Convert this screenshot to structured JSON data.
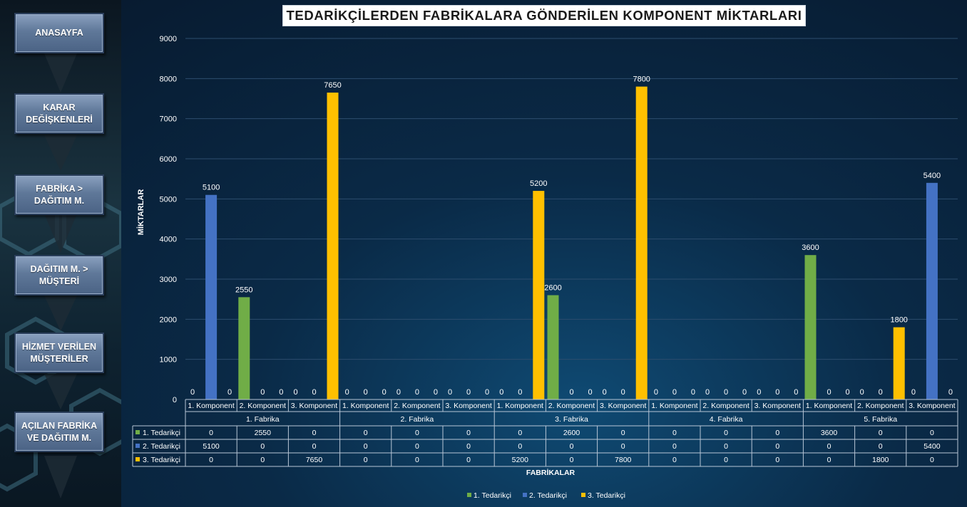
{
  "sidebar": {
    "items": [
      {
        "label": "ANASAYFA"
      },
      {
        "label": "KARAR DEĞİŞKENLERİ"
      },
      {
        "label": "FABRİKA > DAĞITIM M."
      },
      {
        "label": "DAĞITIM M. > MÜŞTERİ"
      },
      {
        "label": "HİZMET VERİLEN MÜŞTERİLER"
      },
      {
        "label": "AÇILAN FABRİKA VE DAĞITIM M."
      }
    ]
  },
  "colors": {
    "series": [
      "#70ad47",
      "#4472c4",
      "#ffc000"
    ]
  },
  "chart_data": {
    "type": "bar",
    "title": "TEDARİKÇİLERDEN FABRİKALARA GÖNDERİLEN KOMPONENT MİKTARLARI",
    "xlabel": "FABRİKALAR",
    "ylabel": "MİKTARLAR",
    "ylim": [
      0,
      9000
    ],
    "yticks": [
      0,
      1000,
      2000,
      3000,
      4000,
      5000,
      6000,
      7000,
      8000,
      9000
    ],
    "grid": true,
    "legend_position": "bottom",
    "groups": [
      "1. Fabrika",
      "2. Fabrika",
      "3. Fabrika",
      "4. Fabrika",
      "5. Fabrika"
    ],
    "subcategories": [
      "1. Komponent",
      "2. Komponent",
      "3. Komponent"
    ],
    "series": [
      {
        "name": "1. Tedarikçi",
        "values": [
          0,
          2550,
          0,
          0,
          0,
          0,
          0,
          2600,
          0,
          0,
          0,
          0,
          3600,
          0,
          0
        ]
      },
      {
        "name": "2. Tedarikçi",
        "values": [
          5100,
          0,
          0,
          0,
          0,
          0,
          0,
          0,
          0,
          0,
          0,
          0,
          0,
          0,
          5400
        ]
      },
      {
        "name": "3. Tedarikçi",
        "values": [
          0,
          0,
          7650,
          0,
          0,
          0,
          5200,
          0,
          7800,
          0,
          0,
          0,
          0,
          1800,
          0
        ]
      }
    ]
  }
}
